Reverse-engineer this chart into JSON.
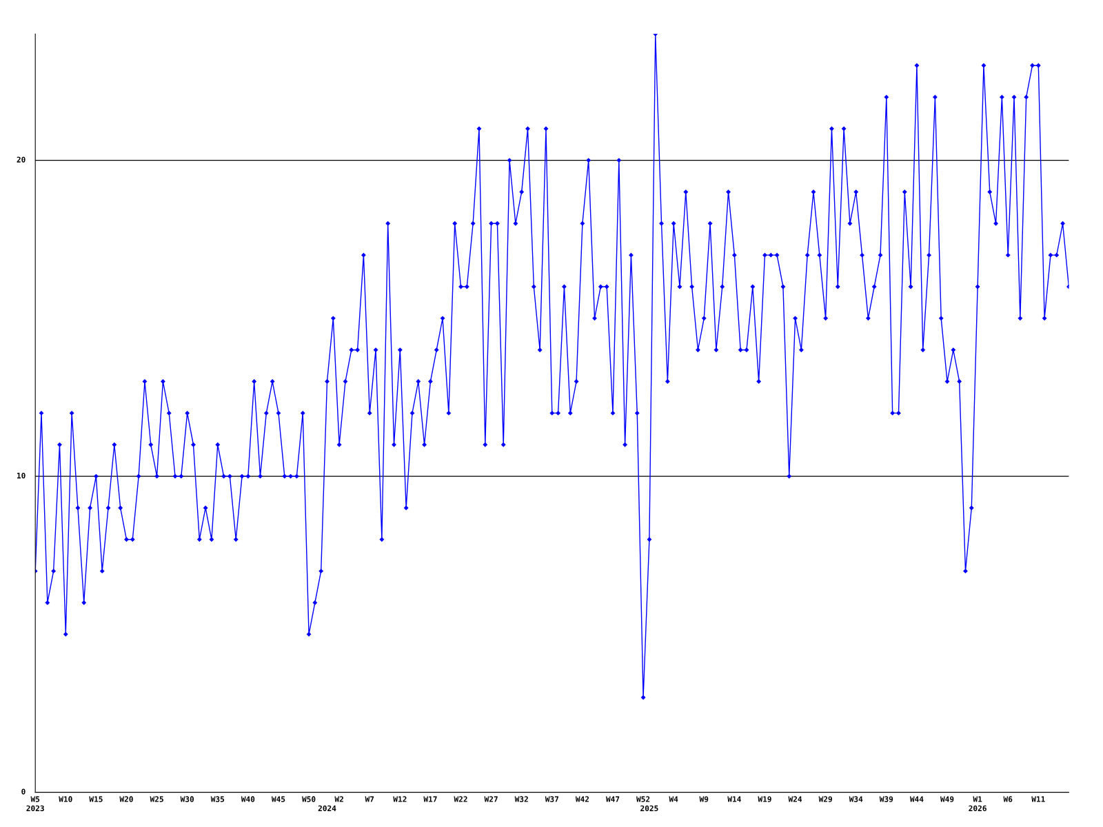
{
  "chart_data": {
    "type": "line",
    "categories": [
      "W5\n2023",
      null,
      null,
      null,
      null,
      "W10",
      null,
      null,
      null,
      null,
      "W15",
      null,
      null,
      null,
      null,
      "W20",
      null,
      null,
      null,
      null,
      "W25",
      null,
      null,
      null,
      null,
      "W30",
      null,
      null,
      null,
      null,
      "W35",
      null,
      null,
      null,
      null,
      "W40",
      null,
      null,
      null,
      null,
      "W45",
      null,
      null,
      null,
      null,
      "W50",
      null,
      null,
      "\n2024",
      null,
      "W2",
      null,
      null,
      null,
      null,
      "W7",
      null,
      null,
      null,
      null,
      "W12",
      null,
      null,
      null,
      null,
      "W17",
      null,
      null,
      null,
      null,
      "W22",
      null,
      null,
      null,
      null,
      "W27",
      null,
      null,
      null,
      null,
      "W32",
      null,
      null,
      null,
      null,
      "W37",
      null,
      null,
      null,
      null,
      "W42",
      null,
      null,
      null,
      null,
      "W47",
      null,
      null,
      null,
      null,
      "W52",
      "\n2025",
      null,
      null,
      null,
      "W4",
      null,
      null,
      null,
      null,
      "W9",
      null,
      null,
      null,
      null,
      "W14",
      null,
      null,
      null,
      null,
      "W19",
      null,
      null,
      null,
      null,
      "W24",
      null,
      null,
      null,
      null,
      "W29",
      null,
      null,
      null,
      null,
      "W34",
      null,
      null,
      null,
      null,
      "W39",
      null,
      null,
      null,
      null,
      "W44",
      null,
      null,
      null,
      null,
      "W49",
      null,
      null,
      null,
      null,
      "W1\n2026",
      null,
      null,
      null,
      null,
      "W6",
      null,
      null,
      null,
      null,
      "W11",
      null,
      null,
      null,
      null,
      null
    ],
    "series": [
      {
        "color": "#0000ff",
        "values": [
          7,
          12,
          6,
          7,
          11,
          5,
          12,
          9,
          6,
          9,
          10,
          7,
          9,
          11,
          9,
          8,
          8,
          10,
          13,
          11,
          10,
          13,
          12,
          10,
          10,
          12,
          11,
          8,
          9,
          8,
          11,
          10,
          10,
          8,
          10,
          10,
          13,
          10,
          12,
          13,
          12,
          10,
          10,
          10,
          12,
          5,
          6,
          7,
          13,
          15,
          11,
          13,
          14,
          14,
          17,
          12,
          14,
          8,
          18,
          11,
          14,
          9,
          12,
          13,
          11,
          13,
          14,
          15,
          12,
          18,
          16,
          16,
          18,
          21,
          11,
          18,
          18,
          11,
          20,
          18,
          19,
          21,
          16,
          14,
          21,
          12,
          12,
          16,
          12,
          13,
          18,
          20,
          15,
          16,
          16,
          12,
          20,
          11,
          17,
          12,
          3,
          8,
          24,
          18,
          13,
          18,
          16,
          19,
          16,
          14,
          15,
          18,
          14,
          16,
          19,
          17,
          14,
          14,
          16,
          13,
          17,
          17,
          17,
          16,
          10,
          15,
          14,
          17,
          19,
          17,
          15,
          21,
          16,
          21,
          18,
          19,
          17,
          15,
          16,
          17,
          22,
          12,
          12,
          19,
          16,
          23,
          14,
          17,
          22,
          15,
          13,
          14,
          13,
          7,
          9,
          16,
          23,
          19,
          18,
          22,
          17,
          22,
          15,
          22,
          23,
          23,
          15,
          17,
          17,
          18,
          16
        ]
      }
    ],
    "ylim": [
      0,
      24
    ],
    "yticks": [
      0,
      10,
      20
    ],
    "grid": "y",
    "marker": "diamond",
    "line_style": "solid"
  }
}
